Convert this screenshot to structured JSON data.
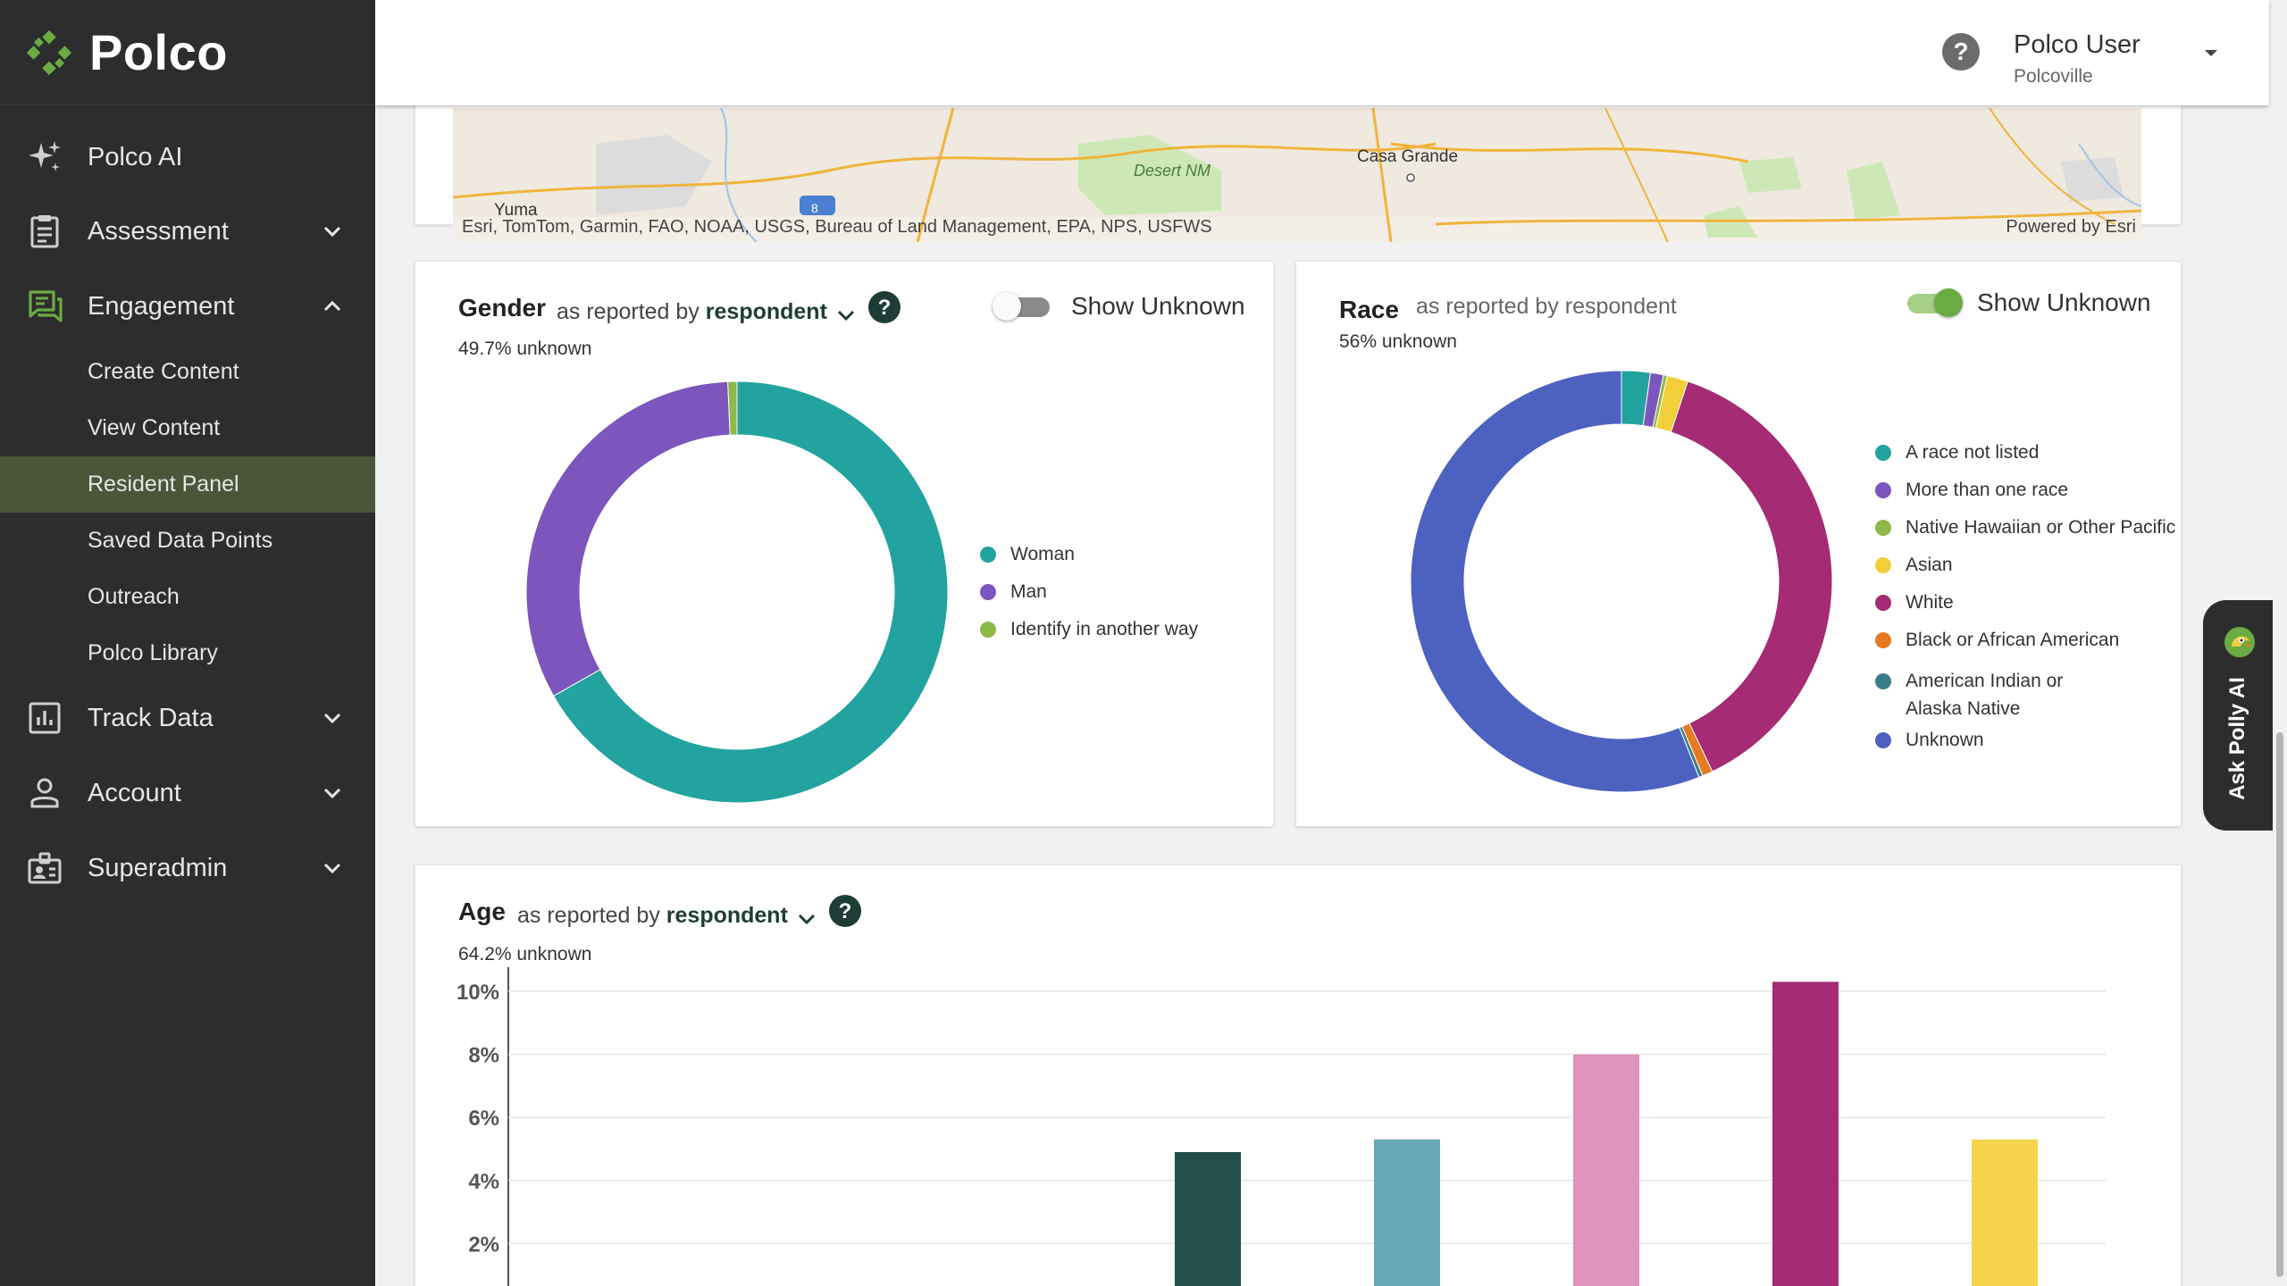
{
  "brand": {
    "name": "Polco",
    "color": "#6bab44"
  },
  "nav": {
    "items": [
      {
        "label": "Polco AI",
        "icon": "sparkle-icon"
      },
      {
        "label": "Assessment",
        "icon": "clipboard-icon",
        "expanded": false
      },
      {
        "label": "Engagement",
        "icon": "chat-icon",
        "expanded": true
      },
      {
        "label": "Track Data",
        "icon": "bar-chart-icon",
        "expanded": false
      },
      {
        "label": "Account",
        "icon": "person-icon",
        "expanded": false
      },
      {
        "label": "Superadmin",
        "icon": "admin-badge-icon",
        "expanded": false
      }
    ],
    "engagement_sub": [
      {
        "label": "Create Content"
      },
      {
        "label": "View Content"
      },
      {
        "label": "Resident Panel",
        "active": true
      },
      {
        "label": "Saved Data Points"
      },
      {
        "label": "Outreach"
      },
      {
        "label": "Polco Library"
      }
    ]
  },
  "header": {
    "user_name": "Polco User",
    "user_org": "Polcoville"
  },
  "map": {
    "attribution": "Esri, TomTom, Garmin, FAO, NOAA, USGS, Bureau of Land Management, EPA, NPS, USFWS",
    "powered_by": "Powered by Esri",
    "labels": {
      "yuma": "Yuma",
      "desert": "Desert NM",
      "casa": "Casa Grande",
      "shield": "8"
    }
  },
  "gender": {
    "title": "Gender",
    "sub_prefix": "as reported by",
    "sub_bold": "respondent",
    "unknown": "49.7% unknown",
    "toggle_label": "Show Unknown",
    "toggle_on": false,
    "chart_data": {
      "type": "pie",
      "categories": [
        "Woman",
        "Man",
        "Identify in another way"
      ],
      "values": [
        66.8,
        32.5,
        0.7
      ],
      "colors": [
        "#22a39f",
        "#7c55bd",
        "#8db84a"
      ]
    }
  },
  "race": {
    "title": "Race",
    "sub": "as reported by respondent",
    "unknown": "56% unknown",
    "toggle_label": "Show Unknown",
    "toggle_on": true,
    "chart_data": {
      "type": "pie",
      "categories": [
        "A race not listed",
        "More than one race",
        "Native Hawaiian or Other Pacific",
        "Asian",
        "White",
        "Black or African American",
        "American Indian or Alaska Native",
        "Unknown"
      ],
      "values": [
        2.2,
        1.0,
        0.3,
        1.6,
        37.8,
        0.8,
        0.3,
        56.0
      ],
      "colors": [
        "#22a39f",
        "#7c55bd",
        "#8db84a",
        "#f2cf3a",
        "#a42b74",
        "#e67a22",
        "#3b7c8a",
        "#4d62c0"
      ]
    }
  },
  "age": {
    "title": "Age",
    "sub_prefix": "as reported by",
    "sub_bold": "respondent",
    "unknown": "64.2% unknown",
    "chart_data": {
      "type": "bar",
      "y_ticks": [
        "2%",
        "4%",
        "6%",
        "8%",
        "10%"
      ],
      "ylim": [
        0,
        11
      ],
      "values": [
        0,
        0,
        0.2,
        4.9,
        5.3,
        8.0,
        10.3,
        5.3
      ],
      "colors": [
        "#8db84a",
        "#8db84a",
        "#8db84a",
        "#224f4a",
        "#68a9b8",
        "#e093be",
        "#a42b74",
        "#f5d34a"
      ]
    }
  },
  "polly": {
    "label": "Ask Polly AI"
  }
}
